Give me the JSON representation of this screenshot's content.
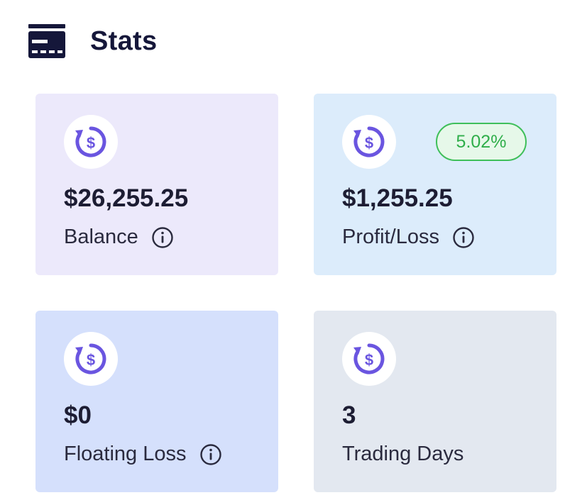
{
  "header": {
    "title": "Stats",
    "icon": "card-icon"
  },
  "colors": {
    "balance_bg": "#ece9fb",
    "profit_bg": "#dcecfb",
    "floating_bg": "#d5e0fc",
    "days_bg": "#e3e8f0",
    "coin_accent": "#6a55e0",
    "badge_green": "#2fae4a"
  },
  "cards": [
    {
      "id": "balance",
      "value": "$26,255.25",
      "label": "Balance",
      "icon": "dollar-refresh-icon",
      "info": true
    },
    {
      "id": "profit",
      "value": "$1,255.25",
      "label": "Profit/Loss",
      "icon": "dollar-refresh-icon",
      "info": true,
      "badge": "5.02%"
    },
    {
      "id": "floating",
      "value": "$0",
      "label": "Floating Loss",
      "icon": "dollar-refresh-icon",
      "info": true
    },
    {
      "id": "days",
      "value": "3",
      "label": "Trading Days",
      "icon": "dollar-refresh-icon",
      "info": false
    }
  ]
}
